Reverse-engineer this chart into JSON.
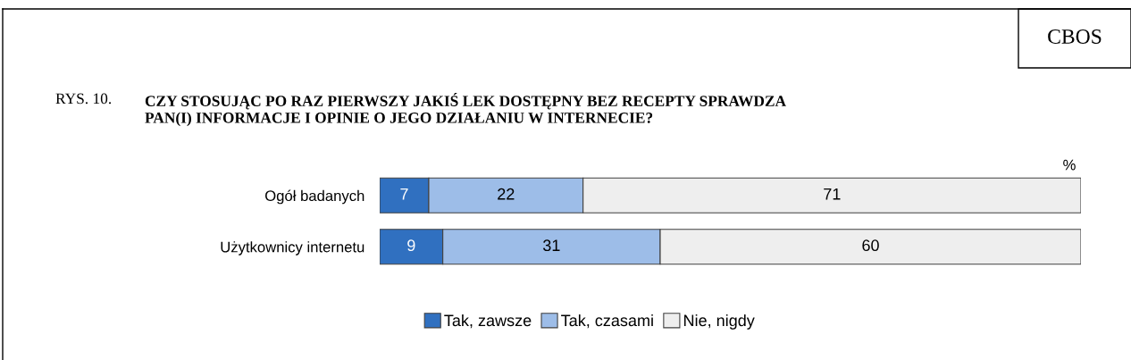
{
  "chart_data": {
    "type": "bar",
    "orientation": "horizontal",
    "stacked": true,
    "data_labels": true,
    "legend": "bottom",
    "grid": false,
    "title": "CZY STOSUJĄC PO RAZ PIERWSZY JAKIŚ LEK DOSTĘPNY BEZ RECEPTY SPRAWDZA\nPAN(I) INFORMACJE I OPINIE O JEGO DZIAŁANIU W INTERNECIE?",
    "annotations": [
      "RYS. 10.",
      "%",
      "CBOS"
    ],
    "categories": [
      "Ogół badanych",
      "Użytkownicy internetu"
    ],
    "series": [
      {
        "name": "Tak, zawsze",
        "color": "#3070c0",
        "values": [
          7,
          9
        ]
      },
      {
        "name": "Tak, czasami",
        "color": "#9dbde8",
        "values": [
          22,
          31
        ]
      },
      {
        "name": "Nie, nigdy",
        "color": "#eeeeee",
        "values": [
          71,
          60
        ]
      }
    ]
  }
}
